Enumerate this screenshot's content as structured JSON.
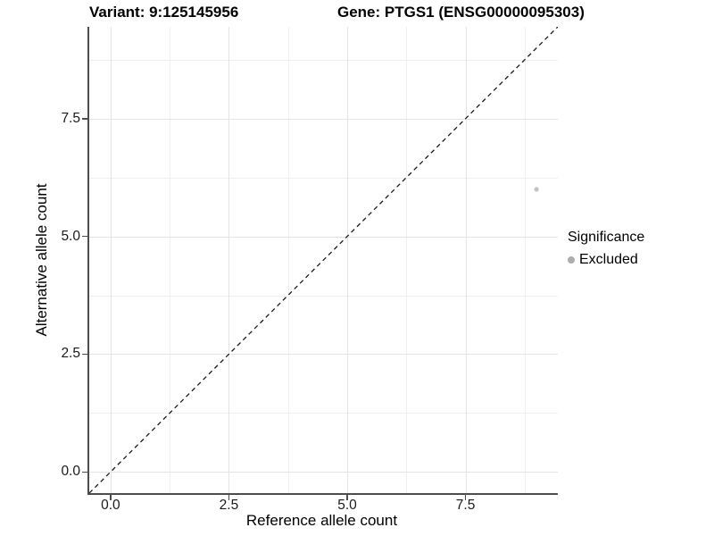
{
  "page": {
    "background": "#FFFFFF"
  },
  "chart_data": {
    "type": "scatter",
    "titles": {
      "left": "Variant: 9:125145956",
      "right": "Gene: PTGS1 (ENSG00000095303)"
    },
    "xlabel": "Reference allele count",
    "ylabel": "Alternative allele count",
    "xlim": [
      -0.45,
      9.45
    ],
    "ylim": [
      -0.45,
      9.45
    ],
    "x_major_ticks": {
      "values": [
        0,
        2.5,
        5,
        7.5
      ],
      "labels": [
        "0.0",
        "2.5",
        "5.0",
        "7.5"
      ]
    },
    "y_major_ticks": {
      "values": [
        0,
        2.5,
        5,
        7.5
      ],
      "labels": [
        "0.0",
        "2.5",
        "5.0",
        "7.5"
      ]
    },
    "x_minor_gridlines": [
      1.25,
      3.75,
      6.25,
      8.75
    ],
    "y_minor_gridlines": [
      1.25,
      3.75,
      6.25,
      8.75
    ],
    "grid": {
      "on": true,
      "major_color": "#E4E4E4",
      "minor_color": "#F0F0F0"
    },
    "axis_line_color": "#4D4D4D",
    "series": [
      {
        "name": "Excluded",
        "color": "#C4C4C4",
        "point_radius": 2.6,
        "points": [
          {
            "x": 9,
            "y": 6
          }
        ]
      }
    ],
    "reference_line": {
      "slope": 1,
      "intercept": 0,
      "style": "dashed",
      "dash": "5,4",
      "color": "#1A1A1A",
      "width": 1.3
    },
    "legend": {
      "position": "right",
      "title": "Significance",
      "items": [
        {
          "label": "Excluded",
          "key_color": "#ADADAD"
        }
      ]
    }
  }
}
